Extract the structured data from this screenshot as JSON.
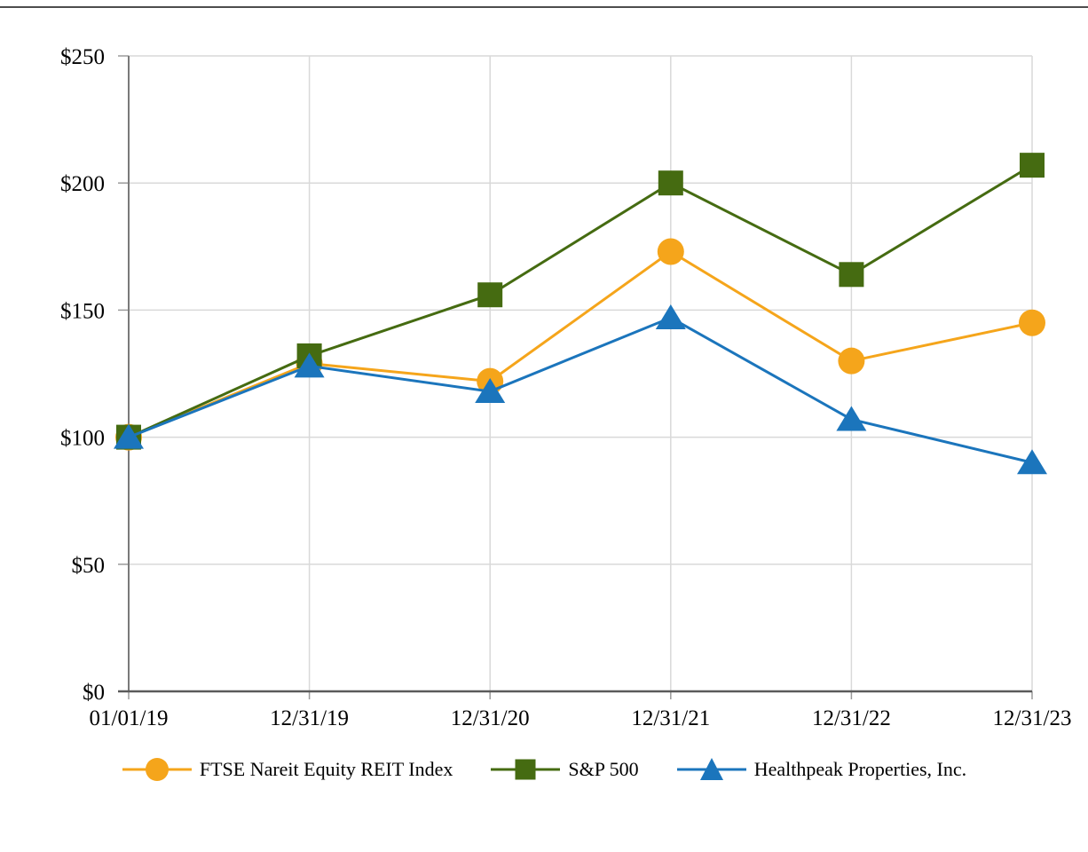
{
  "chart_data": {
    "type": "line",
    "title": "",
    "xlabel": "",
    "ylabel": "",
    "x_categories": [
      "01/01/19",
      "12/31/19",
      "12/31/20",
      "12/31/21",
      "12/31/22",
      "12/31/23"
    ],
    "y_ticks": [
      "$0",
      "$50",
      "$100",
      "$150",
      "$200",
      "$250"
    ],
    "y_tick_values": [
      0,
      50,
      100,
      150,
      200,
      250
    ],
    "ylim": [
      0,
      250
    ],
    "grid": true,
    "legend_position": "bottom",
    "series": [
      {
        "name": "FTSE Nareit Equity REIT Index",
        "marker": "circle",
        "color": "#F5A51B",
        "values": [
          100,
          129,
          122,
          173,
          130,
          145
        ]
      },
      {
        "name": "S&P 500",
        "marker": "square",
        "color": "#456B11",
        "values": [
          100,
          132,
          156,
          200,
          164,
          207
        ]
      },
      {
        "name": "Healthpeak Properties, Inc.",
        "marker": "triangle",
        "color": "#1B75BC",
        "values": [
          100,
          128,
          118,
          147,
          107,
          90
        ]
      }
    ],
    "colors": {
      "grid_color": "#D9D9D9",
      "tick_color": "#9A9A9A",
      "y_axis_color": "#7A7A7A",
      "x_axis_color": "#5A5A5A",
      "top_rule_color": "#4D4D4D",
      "text_color": "#000000"
    }
  }
}
